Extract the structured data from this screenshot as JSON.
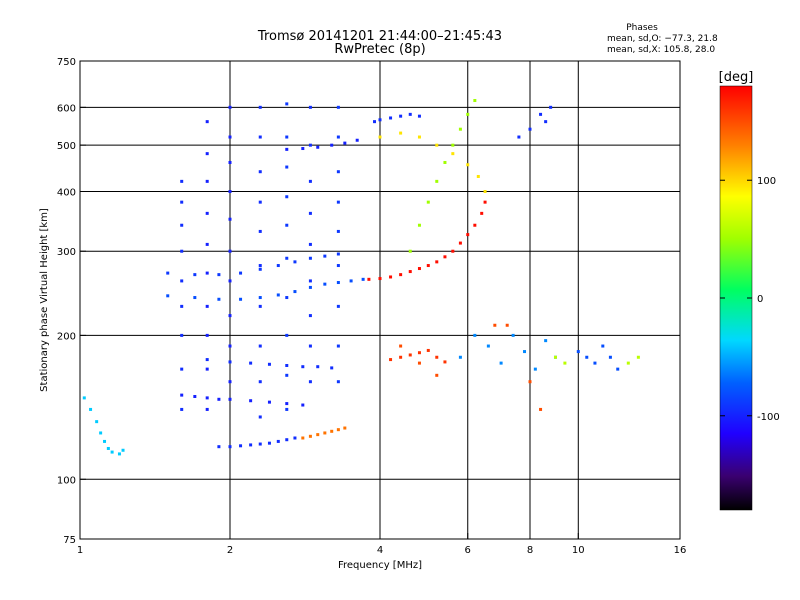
{
  "chart_data": {
    "type": "scatter",
    "title": "Tromsø 20141201 21:44:00–21:45:43",
    "subtitle": "RwPretec (8p)",
    "xlabel": "Frequency [MHz]",
    "ylabel": "Stationary phase Virtual Height [km]",
    "x_scale": "log",
    "y_scale": "log",
    "xlim": [
      1,
      16
    ],
    "ylim": [
      75,
      750
    ],
    "x_ticks": [
      1,
      2,
      4,
      6,
      8,
      10,
      16
    ],
    "x_tick_labels": [
      "1",
      "2",
      "4",
      "6",
      "8",
      "10",
      "16"
    ],
    "y_ticks": [
      75,
      100,
      200,
      300,
      400,
      500,
      600,
      750
    ],
    "y_tick_labels": [
      "75",
      "100",
      "200",
      "300",
      "400",
      "500",
      "600",
      "750"
    ],
    "grid": true,
    "stats": {
      "heading": "Phases",
      "line_o": "mean, sd,O: −77.3, 21.8",
      "line_x": "mean, sd,X: 105.8, 28.0"
    },
    "colorbar": {
      "label": "[deg]",
      "range": [
        -180,
        180
      ],
      "ticks": [
        100,
        0,
        -100
      ],
      "tick_labels": [
        "100",
        "0",
        "-100"
      ]
    },
    "traces": [
      {
        "name": "",
        "phase": -40,
        "points": [
          [
            1.02,
            148
          ],
          [
            1.05,
            140
          ],
          [
            1.08,
            132
          ],
          [
            1.1,
            125
          ],
          [
            1.12,
            120
          ],
          [
            1.14,
            116
          ],
          [
            1.16,
            114
          ],
          [
            1.2,
            113
          ],
          [
            1.22,
            115
          ]
        ]
      },
      {
        "name": "",
        "phase": -95,
        "points": [
          [
            1.9,
            117
          ],
          [
            2.0,
            117
          ],
          [
            2.1,
            117.5
          ],
          [
            2.2,
            118
          ],
          [
            2.3,
            118.5
          ],
          [
            2.4,
            119
          ],
          [
            2.5,
            120
          ],
          [
            2.6,
            121
          ],
          [
            2.7,
            122
          ]
        ]
      },
      {
        "name": "",
        "phase": -100,
        "points": [
          [
            1.6,
            150
          ],
          [
            1.7,
            149
          ],
          [
            1.8,
            148
          ],
          [
            1.9,
            147
          ],
          [
            2.0,
            147
          ],
          [
            2.2,
            146
          ],
          [
            2.4,
            145
          ],
          [
            2.6,
            144
          ],
          [
            2.8,
            143
          ]
        ]
      },
      {
        "name": "",
        "phase": 135,
        "points": [
          [
            2.8,
            122
          ],
          [
            2.9,
            123
          ],
          [
            3.0,
            124
          ],
          [
            3.1,
            125
          ],
          [
            3.2,
            126
          ],
          [
            3.3,
            127
          ],
          [
            3.4,
            128
          ]
        ]
      },
      {
        "name": "",
        "phase": -95,
        "points": [
          [
            1.8,
            178
          ],
          [
            2.0,
            176
          ],
          [
            2.2,
            175
          ],
          [
            2.4,
            174
          ],
          [
            2.6,
            173
          ],
          [
            2.8,
            172
          ],
          [
            3.0,
            172
          ],
          [
            3.2,
            171
          ]
        ]
      },
      {
        "name": "",
        "phase": 160,
        "points": [
          [
            4.2,
            178
          ],
          [
            4.4,
            180
          ],
          [
            4.6,
            182
          ],
          [
            4.8,
            184
          ],
          [
            5.0,
            186
          ],
          [
            5.2,
            180
          ],
          [
            5.4,
            176
          ]
        ]
      },
      {
        "name": "",
        "phase": -80,
        "points": [
          [
            1.5,
            242
          ],
          [
            1.7,
            240
          ],
          [
            1.9,
            238
          ],
          [
            2.1,
            238
          ],
          [
            2.3,
            240
          ],
          [
            2.5,
            243
          ],
          [
            2.7,
            247
          ],
          [
            2.9,
            252
          ],
          [
            3.1,
            256
          ],
          [
            3.3,
            258
          ],
          [
            3.5,
            260
          ],
          [
            3.7,
            262
          ]
        ]
      },
      {
        "name": "",
        "phase": -90,
        "points": [
          [
            1.5,
            270
          ],
          [
            1.7,
            268
          ],
          [
            1.9,
            268
          ],
          [
            2.1,
            270
          ],
          [
            2.3,
            275
          ],
          [
            2.5,
            280
          ],
          [
            2.7,
            285
          ],
          [
            2.9,
            290
          ],
          [
            3.1,
            293
          ],
          [
            3.3,
            296
          ]
        ]
      },
      {
        "name": "",
        "phase": 175,
        "points": [
          [
            3.8,
            262
          ],
          [
            4.0,
            263
          ],
          [
            4.2,
            265
          ],
          [
            4.4,
            268
          ],
          [
            4.6,
            272
          ],
          [
            4.8,
            276
          ],
          [
            5.0,
            280
          ],
          [
            5.2,
            285
          ],
          [
            5.4,
            292
          ],
          [
            5.6,
            300
          ],
          [
            5.8,
            312
          ],
          [
            6.0,
            325
          ],
          [
            6.2,
            340
          ],
          [
            6.4,
            360
          ],
          [
            6.5,
            380
          ]
        ]
      },
      {
        "name": "",
        "phase": 95,
        "points": [
          [
            4.0,
            520
          ],
          [
            4.4,
            530
          ],
          [
            4.8,
            520
          ],
          [
            5.2,
            500
          ],
          [
            5.6,
            480
          ],
          [
            6.0,
            455
          ],
          [
            6.3,
            430
          ],
          [
            6.5,
            400
          ]
        ]
      },
      {
        "name": "",
        "phase": -100,
        "points": [
          [
            2.6,
            490
          ],
          [
            2.8,
            492
          ],
          [
            3.0,
            495
          ],
          [
            3.2,
            500
          ],
          [
            3.4,
            505
          ],
          [
            3.6,
            512
          ]
        ]
      },
      {
        "name": "",
        "phase": -95,
        "points": [
          [
            3.9,
            560
          ],
          [
            4.0,
            565
          ],
          [
            4.2,
            570
          ],
          [
            4.4,
            575
          ],
          [
            4.6,
            580
          ],
          [
            4.8,
            575
          ]
        ]
      },
      {
        "name": "",
        "phase": -95,
        "points": [
          [
            1.6,
            420
          ],
          [
            1.6,
            380
          ],
          [
            1.6,
            340
          ],
          [
            1.6,
            300
          ],
          [
            1.6,
            260
          ],
          [
            1.6,
            230
          ],
          [
            1.6,
            200
          ],
          [
            1.6,
            170
          ],
          [
            1.6,
            140
          ]
        ]
      },
      {
        "name": "",
        "phase": -100,
        "points": [
          [
            1.8,
            560
          ],
          [
            1.8,
            480
          ],
          [
            1.8,
            420
          ],
          [
            1.8,
            360
          ],
          [
            1.8,
            310
          ],
          [
            1.8,
            270
          ],
          [
            1.8,
            230
          ],
          [
            1.8,
            200
          ],
          [
            1.8,
            170
          ],
          [
            1.8,
            140
          ]
        ]
      },
      {
        "name": "",
        "phase": -100,
        "points": [
          [
            2.0,
            600
          ],
          [
            2.0,
            520
          ],
          [
            2.0,
            460
          ],
          [
            2.0,
            400
          ],
          [
            2.0,
            350
          ],
          [
            2.0,
            300
          ],
          [
            2.0,
            260
          ],
          [
            2.0,
            220
          ],
          [
            2.0,
            190
          ],
          [
            2.0,
            160
          ]
        ]
      },
      {
        "name": "",
        "phase": -95,
        "points": [
          [
            2.3,
            600
          ],
          [
            2.3,
            520
          ],
          [
            2.3,
            440
          ],
          [
            2.3,
            380
          ],
          [
            2.3,
            330
          ],
          [
            2.3,
            280
          ],
          [
            2.3,
            230
          ],
          [
            2.3,
            190
          ],
          [
            2.3,
            160
          ],
          [
            2.3,
            135
          ]
        ]
      },
      {
        "name": "",
        "phase": -90,
        "points": [
          [
            2.6,
            610
          ],
          [
            2.6,
            520
          ],
          [
            2.6,
            450
          ],
          [
            2.6,
            390
          ],
          [
            2.6,
            340
          ],
          [
            2.6,
            290
          ],
          [
            2.6,
            240
          ],
          [
            2.6,
            200
          ],
          [
            2.6,
            165
          ],
          [
            2.6,
            140
          ]
        ]
      },
      {
        "name": "",
        "phase": -95,
        "points": [
          [
            2.9,
            600
          ],
          [
            2.9,
            500
          ],
          [
            2.9,
            420
          ],
          [
            2.9,
            360
          ],
          [
            2.9,
            310
          ],
          [
            2.9,
            260
          ],
          [
            2.9,
            220
          ],
          [
            2.9,
            190
          ],
          [
            2.9,
            160
          ]
        ]
      },
      {
        "name": "",
        "phase": -90,
        "points": [
          [
            3.3,
            600
          ],
          [
            3.3,
            520
          ],
          [
            3.3,
            440
          ],
          [
            3.3,
            380
          ],
          [
            3.3,
            330
          ],
          [
            3.3,
            280
          ],
          [
            3.3,
            230
          ],
          [
            3.3,
            190
          ],
          [
            3.3,
            160
          ]
        ]
      },
      {
        "name": "",
        "phase": 50,
        "points": [
          [
            4.6,
            300
          ],
          [
            4.8,
            340
          ],
          [
            5.0,
            380
          ],
          [
            5.2,
            420
          ],
          [
            5.4,
            460
          ],
          [
            5.6,
            500
          ],
          [
            5.8,
            540
          ],
          [
            6.0,
            580
          ],
          [
            6.2,
            620
          ]
        ]
      },
      {
        "name": "",
        "phase": -60,
        "points": [
          [
            5.8,
            180
          ],
          [
            6.2,
            200
          ],
          [
            6.6,
            190
          ],
          [
            7.0,
            175
          ],
          [
            7.4,
            200
          ],
          [
            7.8,
            185
          ],
          [
            8.2,
            170
          ],
          [
            8.6,
            195
          ],
          [
            9.0,
            180
          ]
        ]
      },
      {
        "name": "",
        "phase": -80,
        "points": [
          [
            10.0,
            185
          ],
          [
            10.4,
            180
          ],
          [
            10.8,
            175
          ],
          [
            11.2,
            190
          ],
          [
            11.6,
            180
          ],
          [
            12.0,
            170
          ]
        ]
      },
      {
        "name": "",
        "phase": 60,
        "points": [
          [
            9.0,
            180
          ],
          [
            9.4,
            175
          ],
          [
            12.6,
            175
          ],
          [
            13.2,
            180
          ]
        ]
      },
      {
        "name": "",
        "phase": -95,
        "points": [
          [
            7.6,
            520
          ],
          [
            8.0,
            540
          ],
          [
            8.4,
            580
          ],
          [
            8.6,
            560
          ],
          [
            8.8,
            600
          ]
        ]
      },
      {
        "name": "",
        "phase": 150,
        "points": [
          [
            4.4,
            190
          ],
          [
            4.8,
            175
          ],
          [
            5.2,
            165
          ],
          [
            6.8,
            210
          ],
          [
            7.2,
            210
          ],
          [
            8.0,
            160
          ],
          [
            8.4,
            140
          ]
        ]
      }
    ]
  }
}
